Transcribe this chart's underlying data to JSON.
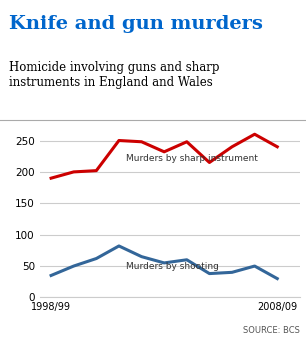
{
  "title": "Knife and gun murders",
  "subtitle": "Homicide involving guns and sharp\ninstruments in England and Wales",
  "title_color": "#0066cc",
  "subtitle_color": "#000000",
  "source": "SOURCE: BCS",
  "years": [
    1998,
    1999,
    2000,
    2001,
    2002,
    2003,
    2004,
    2005,
    2006,
    2007,
    2008
  ],
  "year_labels": [
    "1998/99",
    "2008/09"
  ],
  "sharp_instrument": [
    190,
    200,
    202,
    250,
    248,
    232,
    248,
    215,
    240,
    260,
    240
  ],
  "shooting": [
    35,
    50,
    62,
    82,
    65,
    55,
    60,
    38,
    40,
    50,
    30
  ],
  "sharp_color": "#cc0000",
  "shooting_color": "#336699",
  "ylim": [
    0,
    280
  ],
  "yticks": [
    0,
    50,
    100,
    150,
    200,
    250
  ],
  "grid_color": "#cccccc",
  "bg_color": "#ffffff",
  "sharp_label": "Murders by sharp instrument",
  "shooting_label": "Murders by shooting",
  "line_width": 2.2
}
